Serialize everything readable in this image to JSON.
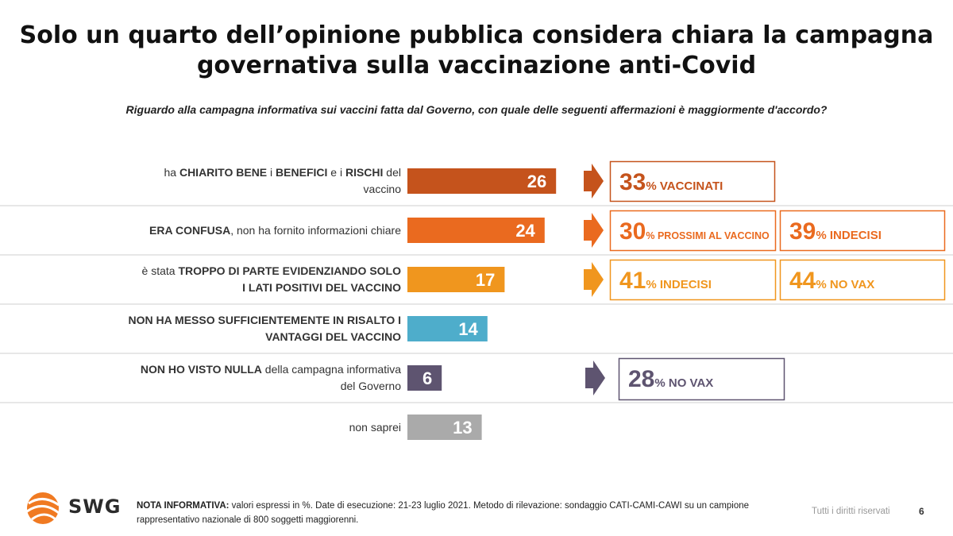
{
  "title_line1": "Solo un quarto dell’opinione pubblica considera chiara la campagna",
  "title_line2": "governativa sulla vaccinazione anti-Covid",
  "question": "Riguardo alla campagna informativa sui vaccini fatta dal Governo, con quale delle seguenti affermazioni è maggiormente d'accordo?",
  "chart_data": {
    "type": "bar",
    "orientation": "horizontal",
    "categories": [
      "ha CHIARITO BENE i BENEFICI e i RISCHI del vaccino",
      "ERA CONFUSA, non ha fornito informazioni chiare",
      "è stata TROPPO DI PARTE EVIDENZIANDO SOLO I LATI POSITIVI DEL VACCINO",
      "NON HA MESSO SUFFICIENTEMENTE IN RISALTO I VANTAGGI DEL VACCINO",
      "NON HO VISTO NULLA della campagna informativa del Governo",
      "non saprei"
    ],
    "values": [
      26,
      24,
      17,
      14,
      6,
      13
    ],
    "colors": [
      "#C5531C",
      "#EA6A1F",
      "#F0961E",
      "#4EADCB",
      "#5E5470",
      "#AAAAAA"
    ],
    "value_labels": [
      "26",
      "24",
      "17",
      "14",
      "6",
      "13"
    ]
  },
  "rows": [
    {
      "label_html": "ha <b>CHIARITO BENE</b> i <b>BENEFICI</b> e i <b>RISCHI</b> del<br>vaccino"
    },
    {
      "label_html": "<b>ERA CONFUSA</b>, non ha fornito informazioni chiare"
    },
    {
      "label_html": "è stata <b>TROPPO DI PARTE EVIDENZIANDO SOLO</b><br><b>I LATI POSITIVI DEL VACCINO</b>"
    },
    {
      "label_html": "<b>NON HA MESSO SUFFICIENTEMENTE IN RISALTO I</b><br><b>VANTAGGI DEL VACCINO</b>"
    },
    {
      "label_html": "<b>NON HO VISTO NULLA</b> della campagna informativa<br>del Governo"
    },
    {
      "label_html": "non saprei"
    }
  ],
  "callouts": [
    {
      "row": 0,
      "boxes": [
        {
          "num": "33",
          "text": "% VACCINATI",
          "color": "#C5531C"
        }
      ]
    },
    {
      "row": 1,
      "boxes": [
        {
          "num": "30",
          "text": "% PROSSIMI AL VACCINO",
          "color": "#EA6A1F"
        },
        {
          "num": "39",
          "text": "% INDECISI",
          "color": "#EA6A1F"
        }
      ]
    },
    {
      "row": 2,
      "boxes": [
        {
          "num": "41",
          "text": "% INDECISI",
          "color": "#F0961E"
        },
        {
          "num": "44",
          "text": "% NO VAX",
          "color": "#F0961E"
        }
      ]
    },
    {
      "row": 4,
      "boxes": [
        {
          "num": "28",
          "text": "% NO VAX",
          "color": "#5E5470"
        }
      ]
    }
  ],
  "footer": {
    "note_label": "NOTA INFORMATIVA:",
    "note_text": " valori espressi in %. Date di esecuzione: 21-23  luglio 2021. Metodo di rilevazione: sondaggio CATI-CAMI-CAWI su un campione rappresentativo nazionale di 800 soggetti maggiorenni.",
    "rights": "Tutti i diritti riservati",
    "page": "6",
    "logo": "SWG"
  }
}
